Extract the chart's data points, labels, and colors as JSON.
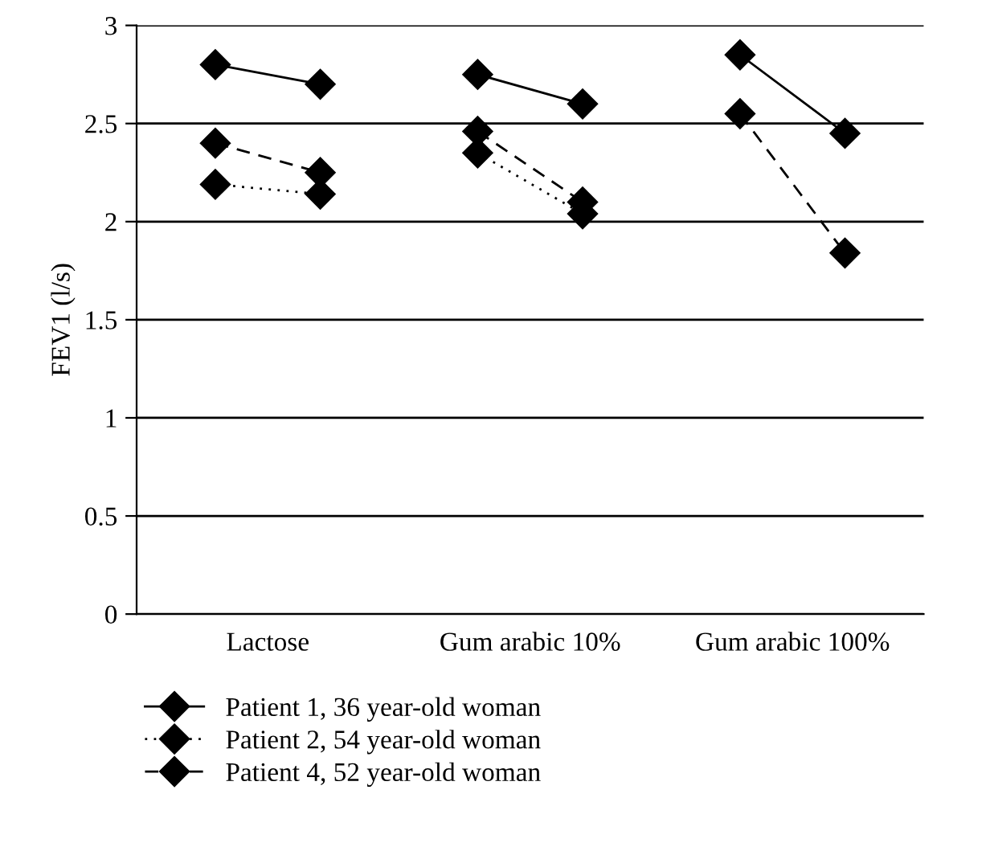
{
  "chart_data": {
    "type": "line",
    "ylabel": "FEV1 (l/s)",
    "categories": [
      null,
      "Lactose",
      null,
      null,
      null,
      null,
      "Gum arabic 10%",
      null,
      null,
      null,
      null,
      "Gum arabic 100%",
      null
    ],
    "ylim": [
      0,
      3
    ],
    "yticks": [
      0,
      0.5,
      1,
      1.5,
      2,
      2.5,
      3
    ],
    "grid": "y",
    "legend": "bottom",
    "marker": "diamond",
    "series": [
      {
        "name": "Patient 1, 36 year-old woman",
        "color": "#000000",
        "line_style": "solid",
        "values": [
          2.8,
          null,
          2.7,
          null,
          null,
          2.75,
          null,
          2.6,
          null,
          null,
          2.85,
          null,
          2.45
        ]
      },
      {
        "name": "Patient 2, 54 year-old woman",
        "color": "#000000",
        "line_style": "dotted",
        "values": [
          2.19,
          null,
          2.14,
          null,
          null,
          2.35,
          null,
          2.04,
          null,
          null,
          null,
          null,
          null
        ]
      },
      {
        "name": "Patient 4, 52 year-old woman",
        "color": "#000000",
        "line_style": "dashed",
        "values": [
          2.4,
          null,
          2.25,
          null,
          null,
          2.46,
          null,
          2.1,
          null,
          null,
          2.55,
          null,
          1.84
        ]
      }
    ]
  }
}
